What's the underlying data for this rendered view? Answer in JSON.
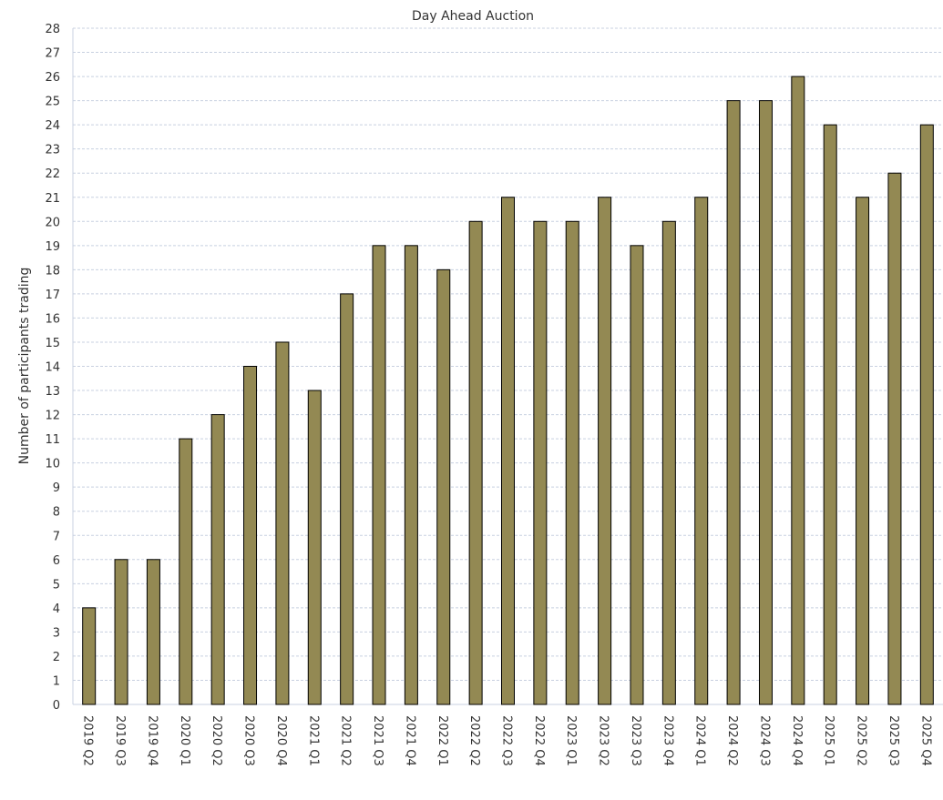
{
  "chart_data": {
    "type": "bar",
    "title": "Day Ahead Auction",
    "xlabel": "",
    "ylabel": "Number of participants trading",
    "ylim": [
      0,
      28
    ],
    "ytick_step": 1,
    "grid": true,
    "legend": "none",
    "categories": [
      "2019 Q2",
      "2019 Q3",
      "2019 Q4",
      "2020 Q1",
      "2020 Q2",
      "2020 Q3",
      "2020 Q4",
      "2021 Q1",
      "2021 Q2",
      "2021 Q3",
      "2021 Q4",
      "2022 Q1",
      "2022 Q2",
      "2022 Q3",
      "2022 Q4",
      "2023 Q1",
      "2023 Q2",
      "2023 Q3",
      "2023 Q4",
      "2024 Q1",
      "2024 Q2",
      "2024 Q3",
      "2024 Q4",
      "2025 Q1",
      "2025 Q2",
      "2025 Q3",
      "2025 Q4"
    ],
    "values": [
      4,
      6,
      6,
      11,
      12,
      14,
      15,
      13,
      17,
      19,
      19,
      18,
      20,
      21,
      20,
      20,
      21,
      19,
      20,
      21,
      25,
      25,
      26,
      24,
      21,
      22,
      24
    ],
    "colors": {
      "bar_fill": "#938953",
      "bar_stroke": "#000000",
      "grid": "#c8d0e0",
      "axis": "#c8d0e0",
      "text": "#333333"
    }
  }
}
